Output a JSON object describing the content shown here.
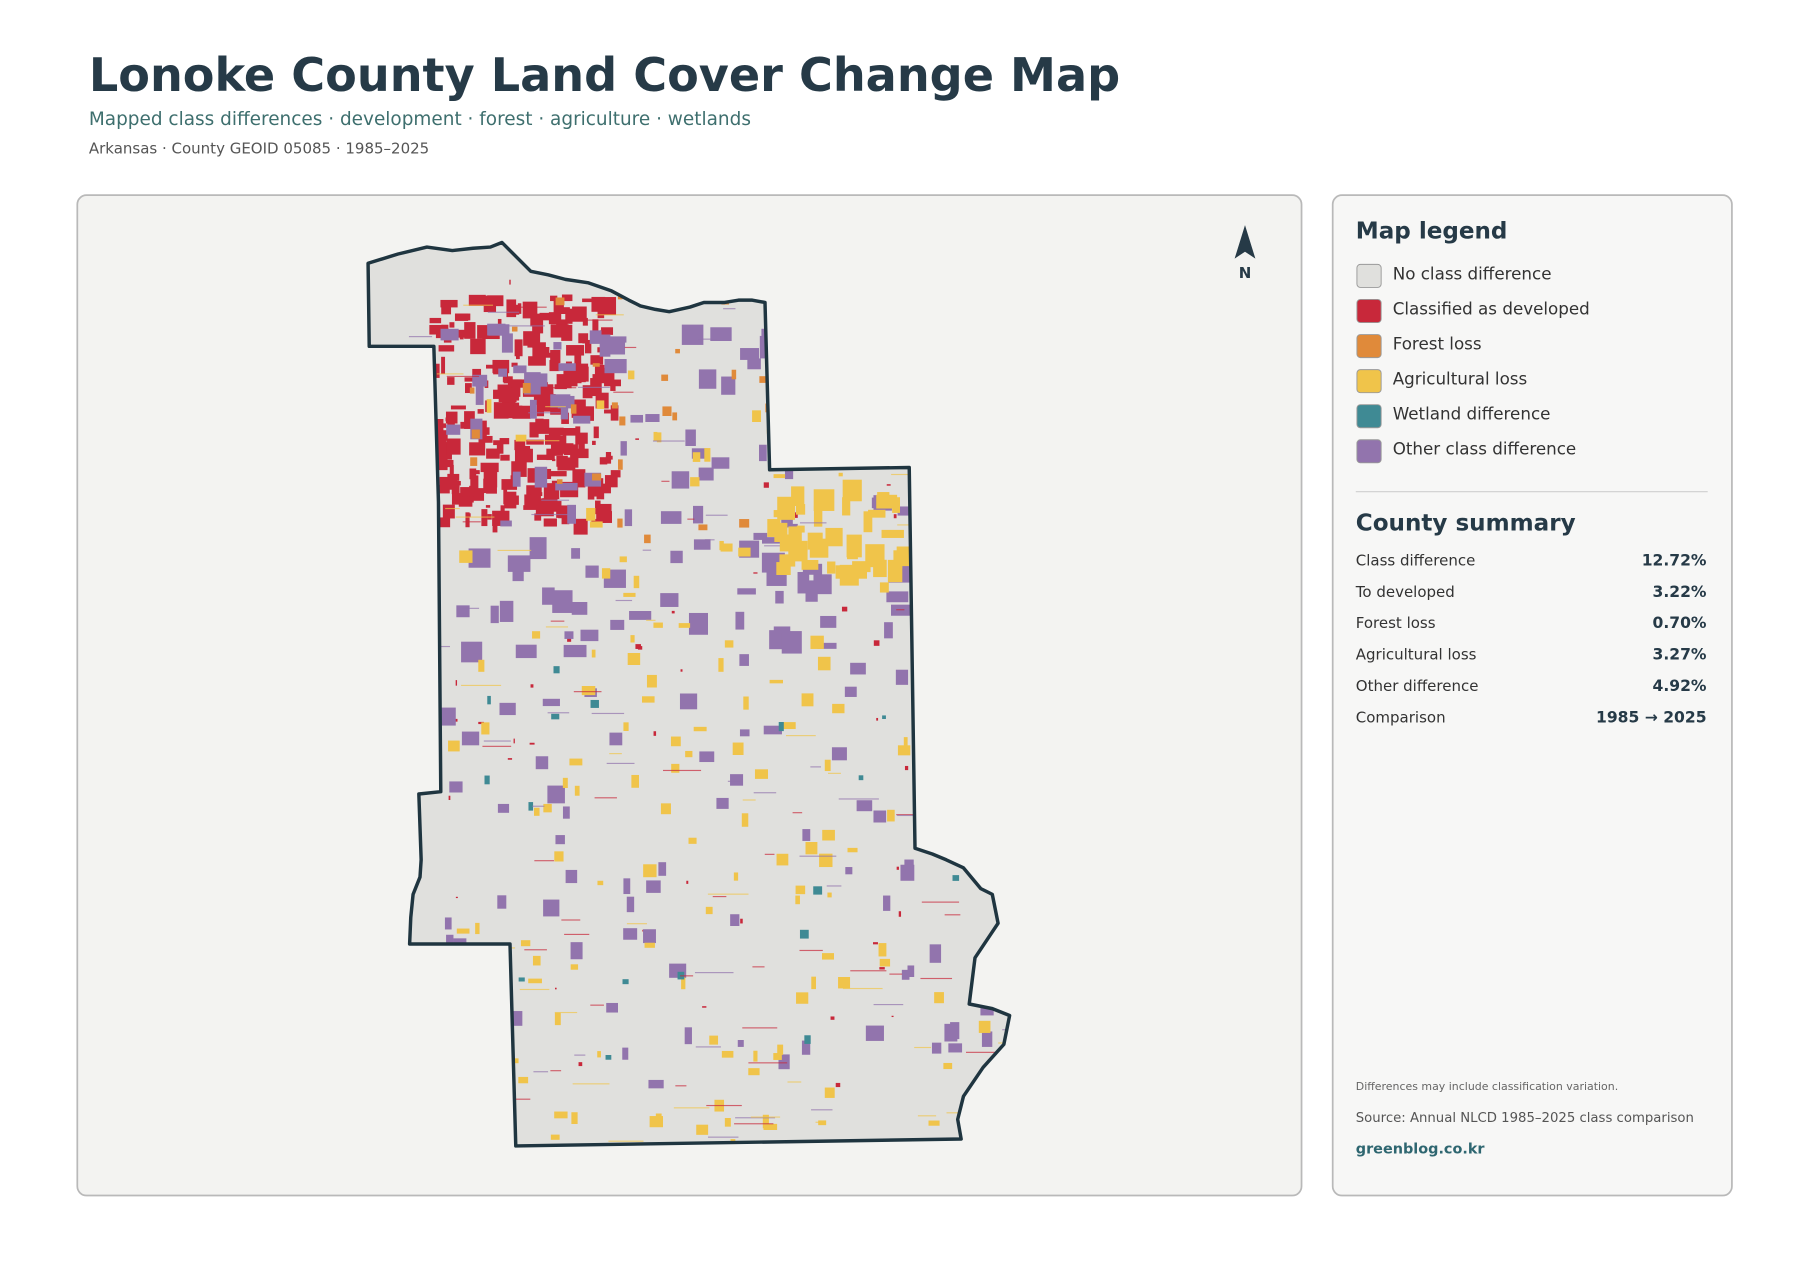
{
  "header": {
    "title": "Lonoke County Land Cover Change Map",
    "subtitle": "Mapped class differences · development · forest · agriculture · wetlands",
    "meta": "Arkansas · County GEOID 05085 · 1985–2025"
  },
  "map": {
    "north_label": "N"
  },
  "legend": {
    "title": "Map legend",
    "items": [
      {
        "label": "No class difference",
        "color": "#e0e0dd"
      },
      {
        "label": "Classified as developed",
        "color": "#c8283a"
      },
      {
        "label": "Forest loss",
        "color": "#e08a3a"
      },
      {
        "label": "Agricultural loss",
        "color": "#f0c44a"
      },
      {
        "label": "Wetland difference",
        "color": "#3f8a94"
      },
      {
        "label": "Other class difference",
        "color": "#9274ad"
      }
    ]
  },
  "summary": {
    "title": "County summary",
    "rows": [
      {
        "label": "Class difference",
        "value": "12.72%"
      },
      {
        "label": "To developed",
        "value": "3.22%"
      },
      {
        "label": "Forest loss",
        "value": "0.70%"
      },
      {
        "label": "Agricultural loss",
        "value": "3.27%"
      },
      {
        "label": "Other difference",
        "value": "4.92%"
      },
      {
        "label": "Comparison",
        "value": "1985 → 2025"
      }
    ]
  },
  "footer": {
    "note": "Differences may include classification variation.",
    "source": "Source: Annual NLCD 1985–2025 class comparison",
    "site": "greenblog.co.kr"
  }
}
